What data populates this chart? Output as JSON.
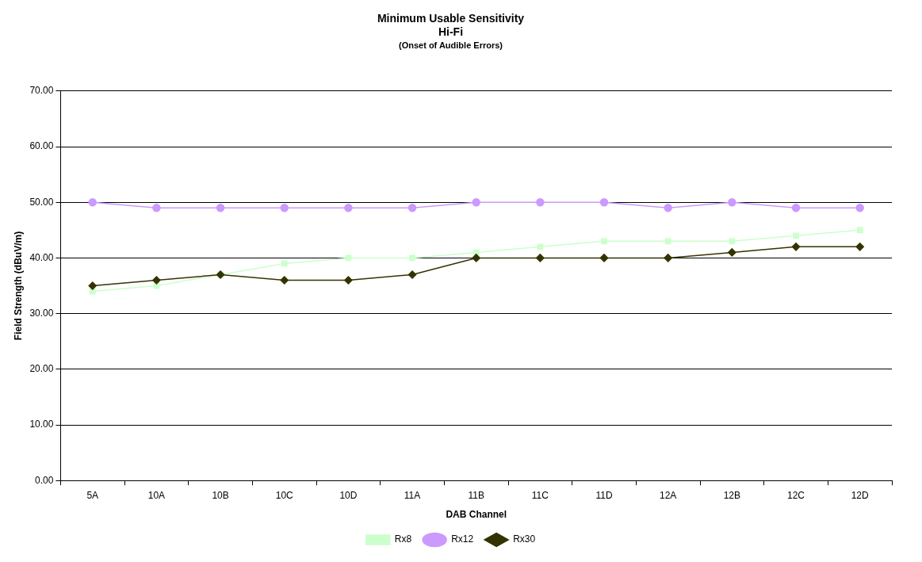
{
  "chart_data": {
    "type": "line",
    "title": "Minimum Usable Sensitivity\nHi-Fi",
    "subtitle": "(Onset of Audible Errors)",
    "xlabel": "DAB Channel",
    "ylabel": "Field Strength (dBuV/m)",
    "categories": [
      "5A",
      "10A",
      "10B",
      "10C",
      "10D",
      "11A",
      "11B",
      "11C",
      "11D",
      "12A",
      "12B",
      "12C",
      "12D"
    ],
    "series": [
      {
        "name": "Rx8",
        "color": "#ccffcc",
        "marker": "square",
        "values": [
          34,
          35,
          37,
          39,
          40,
          40,
          41,
          42,
          43,
          43,
          43,
          44,
          45
        ]
      },
      {
        "name": "Rx12",
        "color": "#cc99ff",
        "marker": "circle",
        "values": [
          50,
          49,
          49,
          49,
          49,
          49,
          50,
          50,
          50,
          49,
          50,
          49,
          49
        ]
      },
      {
        "name": "Rx30",
        "color": "#333300",
        "marker": "diamond",
        "values": [
          35,
          36,
          37,
          36,
          36,
          37,
          40,
          40,
          40,
          40,
          41,
          42,
          42
        ]
      }
    ],
    "ylim": [
      0,
      70
    ],
    "yticks": [
      {
        "value": 0,
        "label": "0.00"
      },
      {
        "value": 10,
        "label": "10.00"
      },
      {
        "value": 20,
        "label": "20.00"
      },
      {
        "value": 30,
        "label": "30.00"
      },
      {
        "value": 40,
        "label": "40.00"
      },
      {
        "value": 50,
        "label": "50.00"
      },
      {
        "value": 60,
        "label": "60.00"
      },
      {
        "value": 70,
        "label": "70.00"
      }
    ],
    "grid": "y",
    "legend": "bottom",
    "line_style": "solid"
  }
}
